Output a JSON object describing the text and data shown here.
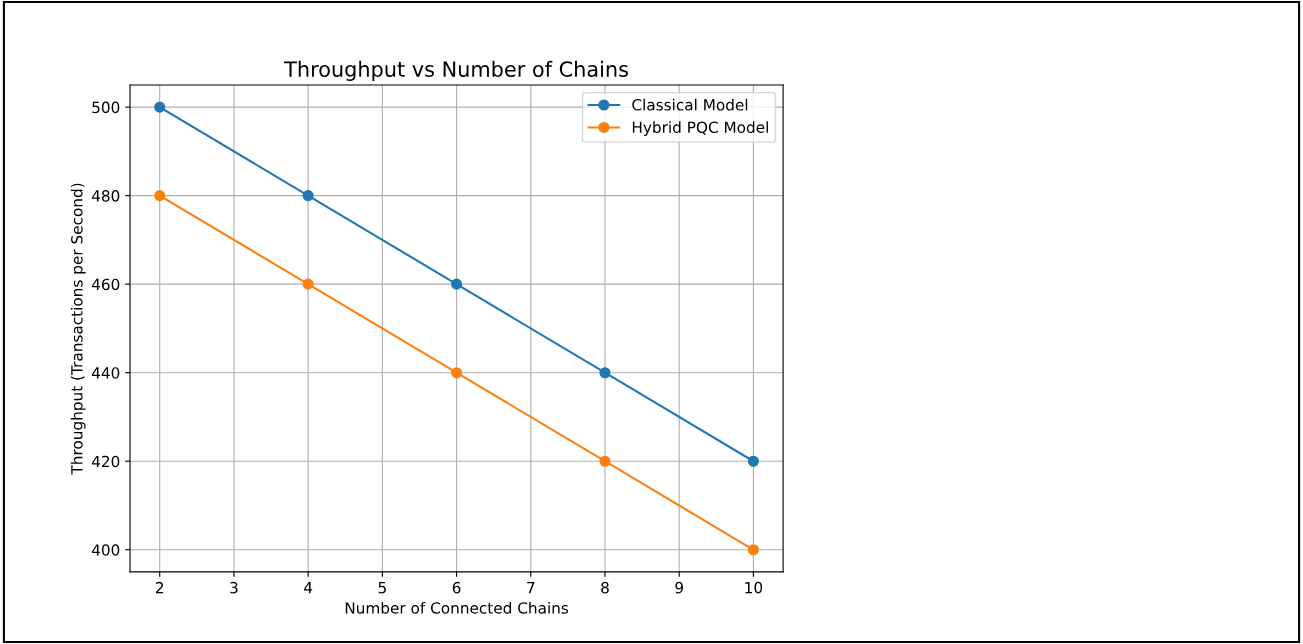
{
  "chart_data": {
    "type": "line",
    "title": "Throughput vs Number of Chains",
    "xlabel": "Number of Connected Chains",
    "ylabel": "Throughput (Transactions per Second)",
    "x": [
      2,
      4,
      6,
      8,
      10
    ],
    "series": [
      {
        "name": "Classical Model",
        "color": "#1f77b4",
        "values": [
          500,
          480,
          460,
          440,
          420
        ]
      },
      {
        "name": "Hybrid PQC Model",
        "color": "#ff7f0e",
        "values": [
          480,
          460,
          440,
          420,
          400
        ]
      }
    ],
    "xlim": [
      1.6,
      10.4
    ],
    "xticks": [
      2,
      3,
      4,
      5,
      6,
      7,
      8,
      9,
      10
    ],
    "ylim": [
      395,
      505
    ],
    "yticks": [
      400,
      420,
      440,
      460,
      480,
      500
    ],
    "grid": true,
    "legend": "top right",
    "marker": "circle",
    "line_style": "solid"
  }
}
